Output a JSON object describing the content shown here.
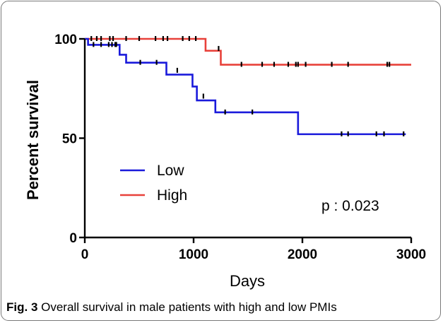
{
  "chart_data": {
    "type": "line",
    "subtype": "kaplan-meier step",
    "xlabel": "Days",
    "ylabel": "Percent survival",
    "xlim": [
      0,
      3000
    ],
    "ylim": [
      0,
      100
    ],
    "x_ticks": [
      "0",
      "1000",
      "2000",
      "3000"
    ],
    "y_ticks": [
      "0",
      "50",
      "100"
    ],
    "legend_position": "left-middle",
    "grid": false,
    "annotation": "p : 0.023",
    "series": [
      {
        "name": "Low",
        "color": "#1a1adb",
        "steps": [
          [
            0,
            100
          ],
          [
            30,
            97
          ],
          [
            320,
            92
          ],
          [
            380,
            88
          ],
          [
            750,
            82
          ],
          [
            990,
            76
          ],
          [
            1030,
            69
          ],
          [
            1200,
            63
          ],
          [
            1960,
            52
          ],
          [
            2950,
            52
          ]
        ],
        "censored": [
          [
            80,
            97
          ],
          [
            150,
            97
          ],
          [
            220,
            97
          ],
          [
            250,
            97
          ],
          [
            280,
            97
          ],
          [
            290,
            97
          ],
          [
            510,
            88
          ],
          [
            660,
            88
          ],
          [
            850,
            84
          ],
          [
            1090,
            71
          ],
          [
            1290,
            63
          ],
          [
            1540,
            63
          ],
          [
            2360,
            52
          ],
          [
            2420,
            52
          ],
          [
            2680,
            52
          ],
          [
            2750,
            52
          ],
          [
            2930,
            52
          ]
        ]
      },
      {
        "name": "High",
        "color": "#e8413a",
        "steps": [
          [
            0,
            100
          ],
          [
            1110,
            94
          ],
          [
            1250,
            87
          ],
          [
            3000,
            87
          ]
        ],
        "censored": [
          [
            60,
            100
          ],
          [
            110,
            100
          ],
          [
            150,
            100
          ],
          [
            230,
            100
          ],
          [
            260,
            100
          ],
          [
            380,
            100
          ],
          [
            500,
            100
          ],
          [
            650,
            100
          ],
          [
            720,
            100
          ],
          [
            760,
            100
          ],
          [
            900,
            100
          ],
          [
            960,
            100
          ],
          [
            1020,
            100
          ],
          [
            1230,
            95
          ],
          [
            1440,
            87
          ],
          [
            1630,
            87
          ],
          [
            1740,
            87
          ],
          [
            1870,
            87
          ],
          [
            1940,
            87
          ],
          [
            1960,
            87
          ],
          [
            2030,
            87
          ],
          [
            2270,
            87
          ],
          [
            2420,
            87
          ],
          [
            2780,
            87
          ],
          [
            2800,
            87
          ]
        ]
      }
    ]
  },
  "caption": {
    "label": "Fig. 3",
    "text": " Overall survival in male patients with high and low PMIs"
  }
}
